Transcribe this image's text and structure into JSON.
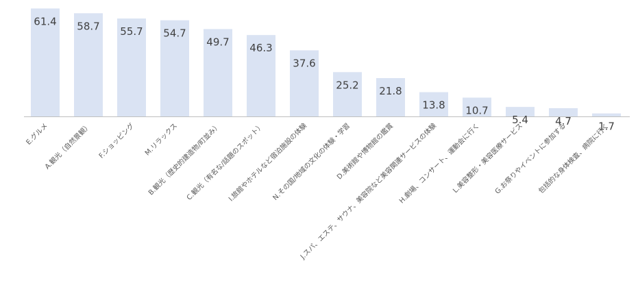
{
  "chart_data": {
    "type": "bar",
    "categories": [
      "E.グルメ",
      "A.観光（自然景観）",
      "F.ショッピング",
      "M.リラックス",
      "B.観光（歴史的建造物/町並み）",
      "C.観光（有名な/話題のスポット）",
      "I.旅館やホテルなど宿泊施設の体験",
      "N.その国/地域の文化の体験・学習",
      "D.美術館や博物館の鑑賞",
      "J.スパ、エステ、サウナ、美容院など美容関連サービスの体験",
      "H.劇場、コンサート、運動会に行く",
      "L.美容整形・美容医療サービス",
      "G.お祭りやイベントに参加する",
      "包括的な身体検査、病院に行く"
    ],
    "values": [
      61.4,
      58.7,
      55.7,
      54.7,
      49.7,
      46.3,
      37.6,
      25.2,
      21.8,
      13.8,
      10.7,
      5.4,
      4.7,
      1.7
    ],
    "value_labels": [
      "61.4",
      "58.7",
      "55.7",
      "54.7",
      "49.7",
      "46.3",
      "37.6",
      "25.2",
      "21.8",
      "13.8",
      "10.7",
      "5.4",
      "4.7",
      "1.7"
    ],
    "ylim": [
      0,
      63.5
    ],
    "grid": false,
    "legend": "none",
    "colors": {
      "bar": "#dae3f3",
      "axis": "#bfbfbf",
      "value_text": "#404040",
      "category_text": "#595959"
    }
  }
}
